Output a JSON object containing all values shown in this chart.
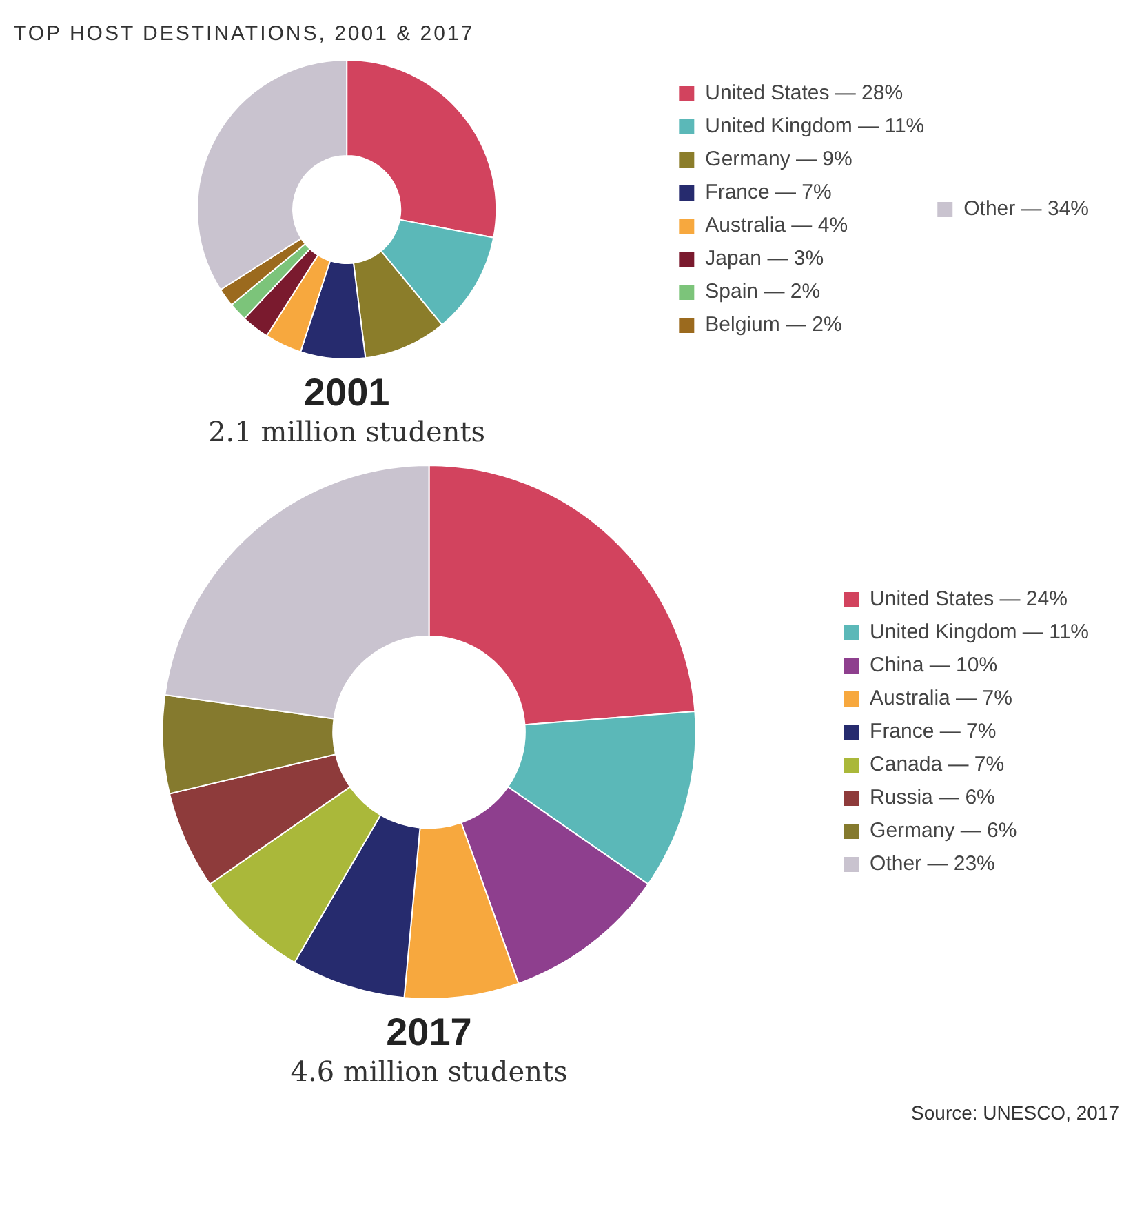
{
  "chart_data": [
    {
      "type": "donut",
      "title": "2001",
      "subtitle": "2.1 million students",
      "annotations": [
        "TOP HOST DESTINATIONS, 2001 & 2017"
      ],
      "legend": "right",
      "categories": [
        "United States — 28%",
        "United Kingdom — 11%",
        "Germany — 9%",
        "France — 7%",
        "Australia — 4%",
        "Japan — 3%",
        "Spain — 2%",
        "Belgium — 2%",
        "Other — 34%"
      ],
      "values": [
        28,
        11,
        9,
        7,
        4,
        3,
        2,
        2,
        34
      ],
      "colors": [
        "#d2435e",
        "#5bb8b8",
        "#8b7d2a",
        "#262b6e",
        "#f7a83e",
        "#7a1a2e",
        "#7cc47a",
        "#9b6a1e",
        "#c9c3cf"
      ]
    },
    {
      "type": "donut",
      "title": "2017",
      "subtitle": "4.6 million students",
      "annotations": [
        "Source: UNESCO, 2017"
      ],
      "legend": "right",
      "categories": [
        "United States — 24%",
        "United Kingdom — 11%",
        "China — 10%",
        "Australia — 7%",
        "France — 7%",
        "Canada — 7%",
        "Russia — 6%",
        "Germany — 6%",
        "Other — 23%"
      ],
      "values": [
        24,
        11,
        10,
        7,
        7,
        7,
        6,
        6,
        23
      ],
      "colors": [
        "#d2435e",
        "#5bb8b8",
        "#8e3f8e",
        "#f7a83e",
        "#262b6e",
        "#aab83a",
        "#8e3b3b",
        "#857a2e",
        "#c9c3cf"
      ]
    }
  ]
}
